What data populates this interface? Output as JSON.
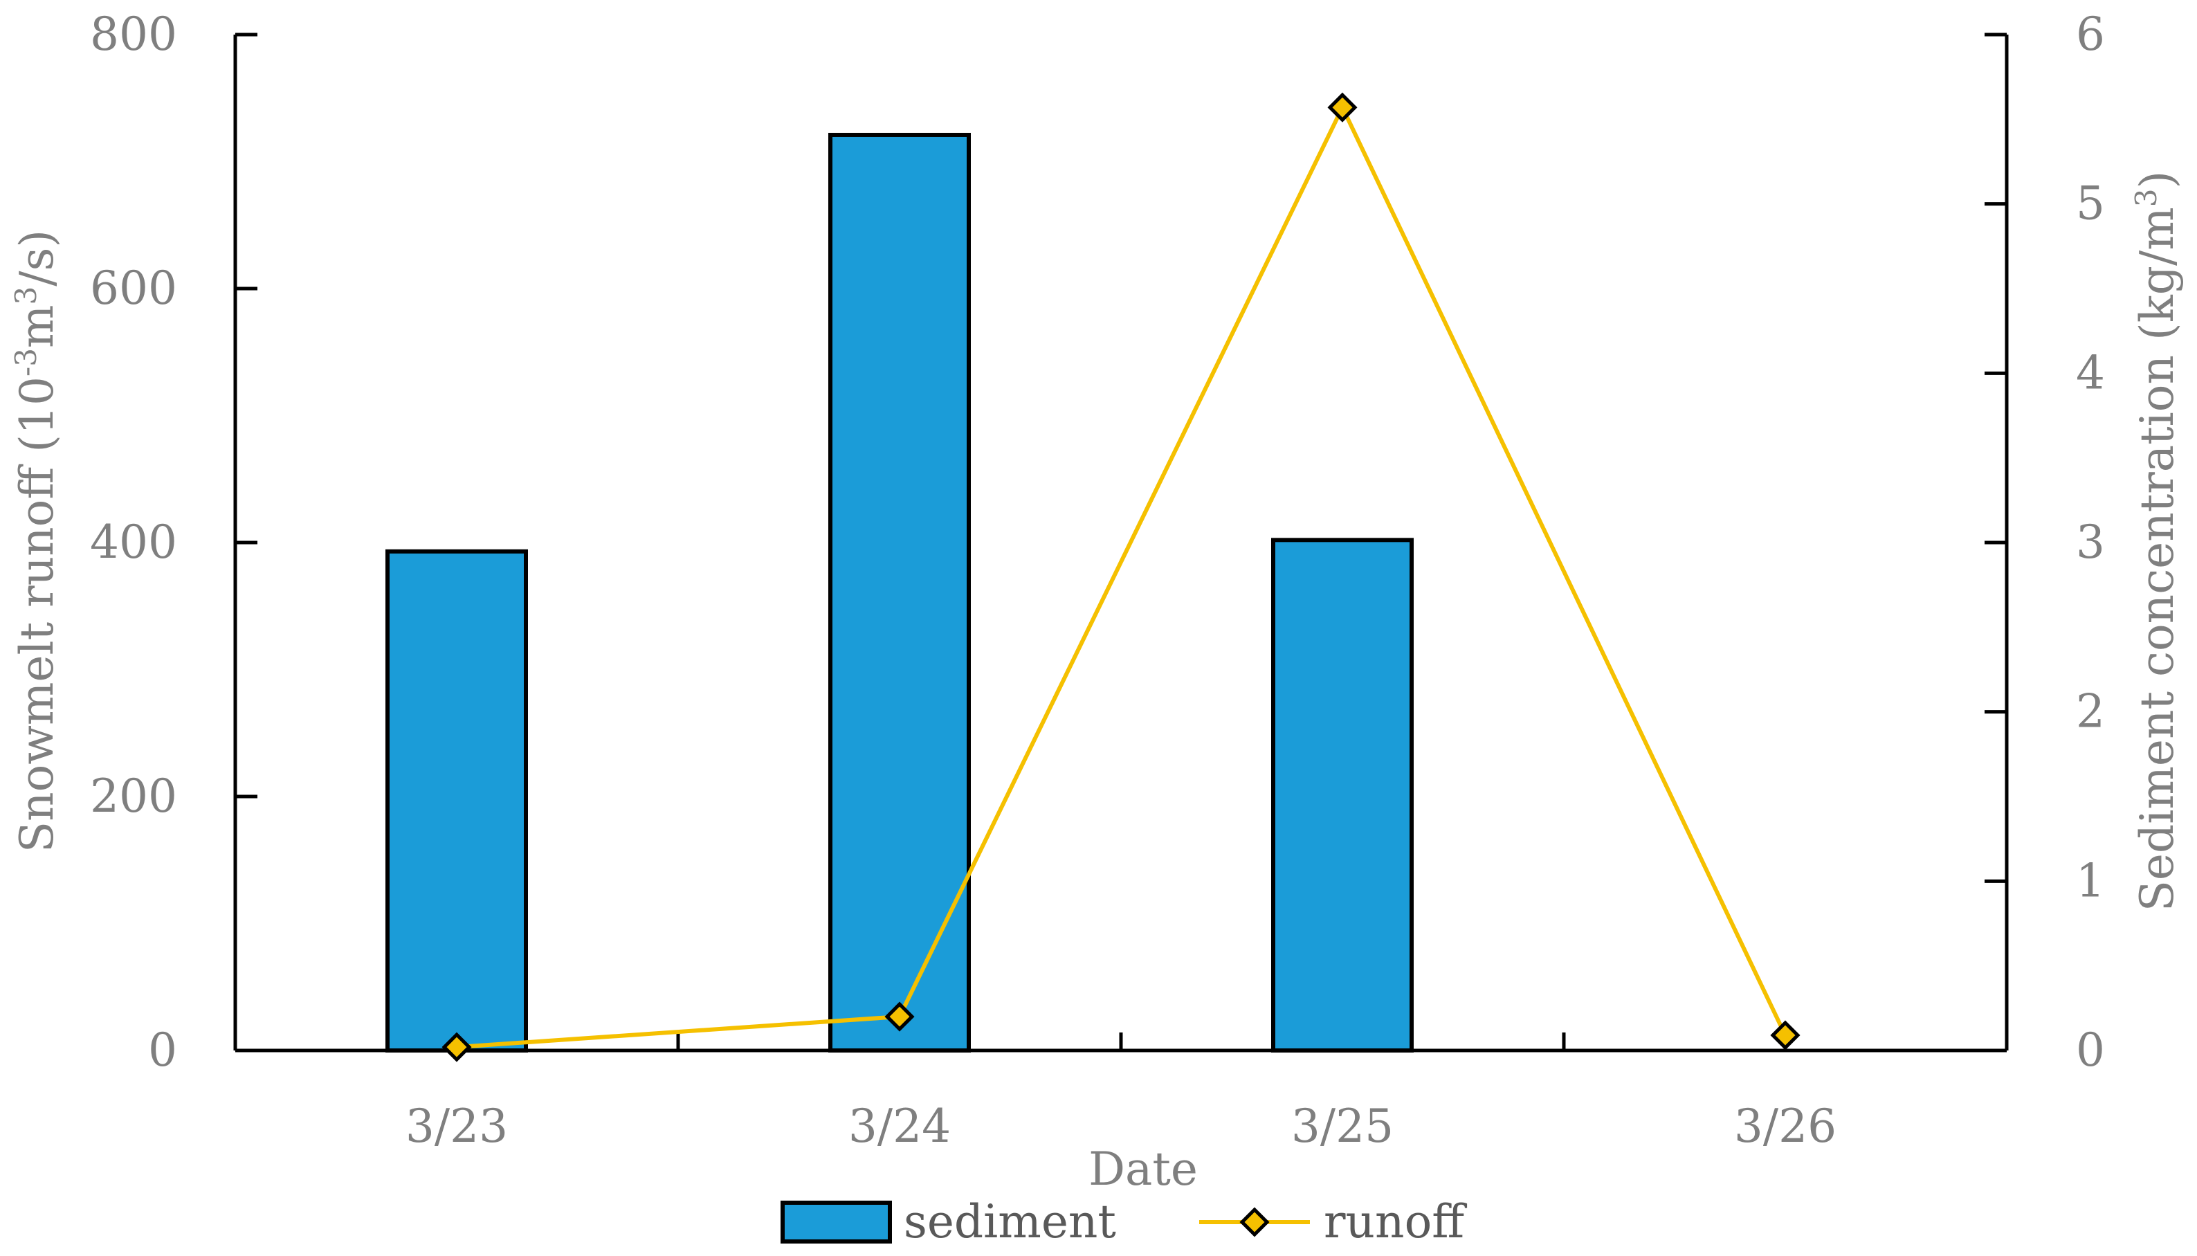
{
  "chart_data": {
    "type": "bar",
    "title": "",
    "categories": [
      "3/23",
      "3/24",
      "3/25",
      "3/26"
    ],
    "xlabel": "Date",
    "ylabel": {
      "text": "Snowmelt runoff (10",
      "sup1": "-3",
      "mid": "m",
      "sup2": "3",
      "end": "/s)"
    },
    "y2label": {
      "text": "Sediment concentration (kg/m",
      "sup": "3",
      "end": ")"
    },
    "ylim": [
      0,
      800
    ],
    "yticks": [
      0,
      200,
      400,
      600,
      800
    ],
    "y2lim": [
      0,
      6
    ],
    "y2ticks": [
      0,
      1,
      2,
      3,
      4,
      5,
      6
    ],
    "series": [
      {
        "name": "sediment",
        "kind": "bar",
        "axis": "left",
        "color": "#1b9cd8",
        "values": [
          393,
          721,
          402,
          0
        ]
      },
      {
        "name": "runoff",
        "kind": "line",
        "axis": "right",
        "color": "#f5c000",
        "marker": "diamond",
        "values": [
          0.02,
          0.2,
          5.57,
          0.09
        ]
      }
    ],
    "legend": {
      "position": "bottom",
      "items": [
        "sediment",
        "runoff"
      ]
    },
    "grid": false
  }
}
